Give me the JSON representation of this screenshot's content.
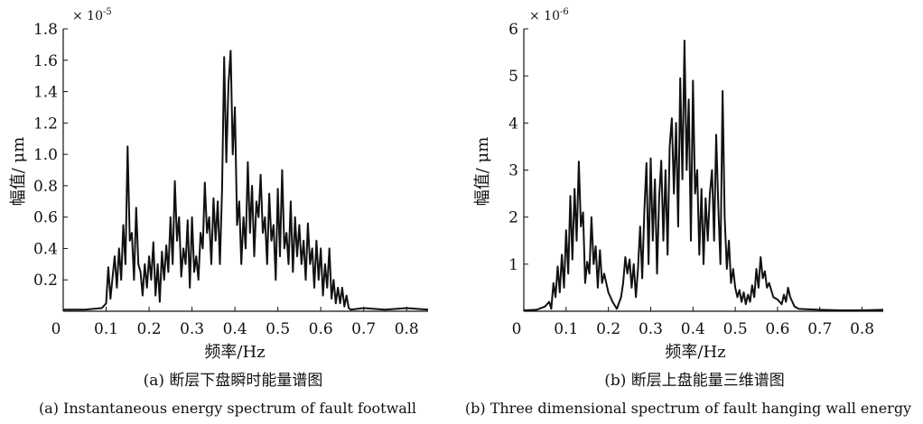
{
  "chart_data": [
    {
      "type": "line",
      "multiplier_label": "× 10",
      "multiplier_exp": "-5",
      "xlabel": "频率/Hz",
      "ylabel": "幅值/ μm",
      "xlim": [
        0,
        0.85
      ],
      "ylim": [
        0,
        1.8
      ],
      "x_ticks": [
        0,
        0.1,
        0.2,
        0.3,
        0.4,
        0.5,
        0.6,
        0.7,
        0.8
      ],
      "x_tick_labels": [
        "0",
        "0.1",
        "0.2",
        "0.3",
        "0.4",
        "0.5",
        "0.6",
        "0.7",
        "0.8"
      ],
      "y_ticks": [
        0.2,
        0.4,
        0.6,
        0.8,
        1.0,
        1.2,
        1.4,
        1.6,
        1.8
      ],
      "y_tick_labels": [
        "0.2",
        "0.4",
        "0.6",
        "0.8",
        "1.0",
        "1.2",
        "1.4",
        "1.6",
        "1.8"
      ],
      "caption_cn": "(a) 断层下盘瞬时能量谱图",
      "caption_en": "(a) Instantaneous energy spectrum of fault footwall",
      "series": [
        {
          "x": [
            0,
            0.05,
            0.09,
            0.1,
            0.105,
            0.11,
            0.115,
            0.12,
            0.125,
            0.13,
            0.135,
            0.14,
            0.145,
            0.15,
            0.155,
            0.16,
            0.165,
            0.17,
            0.175,
            0.18,
            0.185,
            0.19,
            0.195,
            0.2,
            0.205,
            0.21,
            0.215,
            0.22,
            0.225,
            0.23,
            0.235,
            0.24,
            0.245,
            0.25,
            0.255,
            0.26,
            0.265,
            0.27,
            0.275,
            0.28,
            0.285,
            0.29,
            0.295,
            0.3,
            0.305,
            0.31,
            0.315,
            0.32,
            0.325,
            0.33,
            0.335,
            0.34,
            0.345,
            0.35,
            0.355,
            0.36,
            0.365,
            0.37,
            0.375,
            0.38,
            0.385,
            0.39,
            0.395,
            0.4,
            0.405,
            0.41,
            0.415,
            0.42,
            0.425,
            0.43,
            0.435,
            0.44,
            0.445,
            0.45,
            0.455,
            0.46,
            0.465,
            0.47,
            0.475,
            0.48,
            0.485,
            0.49,
            0.495,
            0.5,
            0.505,
            0.51,
            0.515,
            0.52,
            0.525,
            0.53,
            0.535,
            0.54,
            0.545,
            0.55,
            0.555,
            0.56,
            0.565,
            0.57,
            0.575,
            0.58,
            0.585,
            0.59,
            0.595,
            0.6,
            0.605,
            0.61,
            0.615,
            0.62,
            0.625,
            0.63,
            0.635,
            0.64,
            0.645,
            0.65,
            0.655,
            0.66,
            0.665,
            0.67,
            0.7,
            0.75,
            0.8,
            0.85
          ],
          "y": [
            0.01,
            0.01,
            0.02,
            0.05,
            0.28,
            0.08,
            0.22,
            0.35,
            0.15,
            0.4,
            0.2,
            0.55,
            0.3,
            1.05,
            0.45,
            0.5,
            0.2,
            0.66,
            0.3,
            0.25,
            0.1,
            0.3,
            0.15,
            0.35,
            0.2,
            0.44,
            0.1,
            0.3,
            0.06,
            0.38,
            0.2,
            0.42,
            0.25,
            0.6,
            0.3,
            0.83,
            0.45,
            0.6,
            0.22,
            0.4,
            0.3,
            0.58,
            0.15,
            0.6,
            0.25,
            0.35,
            0.2,
            0.5,
            0.4,
            0.82,
            0.5,
            0.6,
            0.3,
            0.72,
            0.45,
            0.7,
            0.3,
            0.78,
            1.62,
            0.95,
            1.45,
            1.66,
            1.0,
            1.3,
            0.55,
            0.7,
            0.3,
            0.6,
            0.4,
            0.95,
            0.5,
            0.8,
            0.35,
            0.7,
            0.6,
            0.87,
            0.5,
            0.6,
            0.3,
            0.75,
            0.45,
            0.55,
            0.2,
            0.78,
            0.35,
            0.9,
            0.4,
            0.5,
            0.3,
            0.7,
            0.25,
            0.6,
            0.35,
            0.55,
            0.3,
            0.45,
            0.2,
            0.56,
            0.3,
            0.4,
            0.15,
            0.45,
            0.2,
            0.4,
            0.1,
            0.3,
            0.15,
            0.4,
            0.08,
            0.2,
            0.05,
            0.15,
            0.05,
            0.15,
            0.03,
            0.1,
            0.02,
            0.01,
            0.02,
            0.01,
            0.02,
            0.01
          ]
        }
      ]
    },
    {
      "type": "line",
      "multiplier_label": "× 10",
      "multiplier_exp": "-6",
      "xlabel": "频率/Hz",
      "ylabel": "幅值/ μm",
      "xlim": [
        0,
        0.85
      ],
      "ylim": [
        0,
        6
      ],
      "x_ticks": [
        0,
        0.1,
        0.2,
        0.3,
        0.4,
        0.5,
        0.6,
        0.7,
        0.8
      ],
      "x_tick_labels": [
        "0",
        "0.1",
        "0.2",
        "0.3",
        "0.4",
        "0.5",
        "0.6",
        "0.7",
        "0.8"
      ],
      "y_ticks": [
        1,
        2,
        3,
        4,
        5,
        6
      ],
      "y_tick_labels": [
        "1",
        "2",
        "3",
        "4",
        "5",
        "6"
      ],
      "caption_cn": "(b) 断层上盘能量三维谱图",
      "caption_en": "(b) Three dimensional spectrum of fault hanging wall energy",
      "series": [
        {
          "x": [
            0,
            0.03,
            0.05,
            0.06,
            0.065,
            0.07,
            0.075,
            0.08,
            0.085,
            0.09,
            0.095,
            0.1,
            0.105,
            0.11,
            0.115,
            0.12,
            0.125,
            0.13,
            0.135,
            0.14,
            0.145,
            0.15,
            0.155,
            0.16,
            0.165,
            0.17,
            0.175,
            0.18,
            0.185,
            0.19,
            0.2,
            0.21,
            0.22,
            0.23,
            0.235,
            0.24,
            0.245,
            0.25,
            0.255,
            0.26,
            0.265,
            0.27,
            0.275,
            0.28,
            0.285,
            0.29,
            0.295,
            0.3,
            0.305,
            0.31,
            0.315,
            0.32,
            0.325,
            0.33,
            0.335,
            0.34,
            0.345,
            0.35,
            0.355,
            0.36,
            0.365,
            0.37,
            0.375,
            0.38,
            0.385,
            0.39,
            0.395,
            0.4,
            0.405,
            0.41,
            0.415,
            0.42,
            0.425,
            0.43,
            0.435,
            0.44,
            0.445,
            0.45,
            0.455,
            0.46,
            0.465,
            0.47,
            0.475,
            0.48,
            0.485,
            0.49,
            0.495,
            0.5,
            0.505,
            0.51,
            0.515,
            0.52,
            0.525,
            0.53,
            0.535,
            0.54,
            0.545,
            0.55,
            0.555,
            0.56,
            0.565,
            0.57,
            0.575,
            0.58,
            0.59,
            0.6,
            0.61,
            0.615,
            0.62,
            0.625,
            0.63,
            0.64,
            0.65,
            0.7,
            0.75,
            0.8,
            0.85
          ],
          "y": [
            0.02,
            0.03,
            0.1,
            0.2,
            0.05,
            0.6,
            0.3,
            0.95,
            0.4,
            1.2,
            0.5,
            1.72,
            0.8,
            2.45,
            1.1,
            2.6,
            1.5,
            3.18,
            1.8,
            2.1,
            0.6,
            1.05,
            0.8,
            2.0,
            1.0,
            1.38,
            0.5,
            1.3,
            0.6,
            0.8,
            0.4,
            0.2,
            0.05,
            0.3,
            0.6,
            1.15,
            0.8,
            1.1,
            0.5,
            1.0,
            0.3,
            0.9,
            1.8,
            0.7,
            2.1,
            3.15,
            1.0,
            3.25,
            1.5,
            2.8,
            0.8,
            2.4,
            3.2,
            1.5,
            3.0,
            1.2,
            3.5,
            4.1,
            2.5,
            4.0,
            1.8,
            4.95,
            2.8,
            5.75,
            3.0,
            4.5,
            1.5,
            4.9,
            2.5,
            3.0,
            1.2,
            2.6,
            1.0,
            2.4,
            1.5,
            2.5,
            3.0,
            1.5,
            3.75,
            2.2,
            1.0,
            4.68,
            2.0,
            0.9,
            1.5,
            0.6,
            0.9,
            0.5,
            0.3,
            0.45,
            0.2,
            0.4,
            0.15,
            0.35,
            0.2,
            0.55,
            0.3,
            0.9,
            0.5,
            1.15,
            0.7,
            0.85,
            0.5,
            0.6,
            0.3,
            0.25,
            0.15,
            0.35,
            0.2,
            0.5,
            0.3,
            0.1,
            0.05,
            0.03,
            0.02,
            0.02,
            0.03
          ]
        }
      ]
    }
  ]
}
